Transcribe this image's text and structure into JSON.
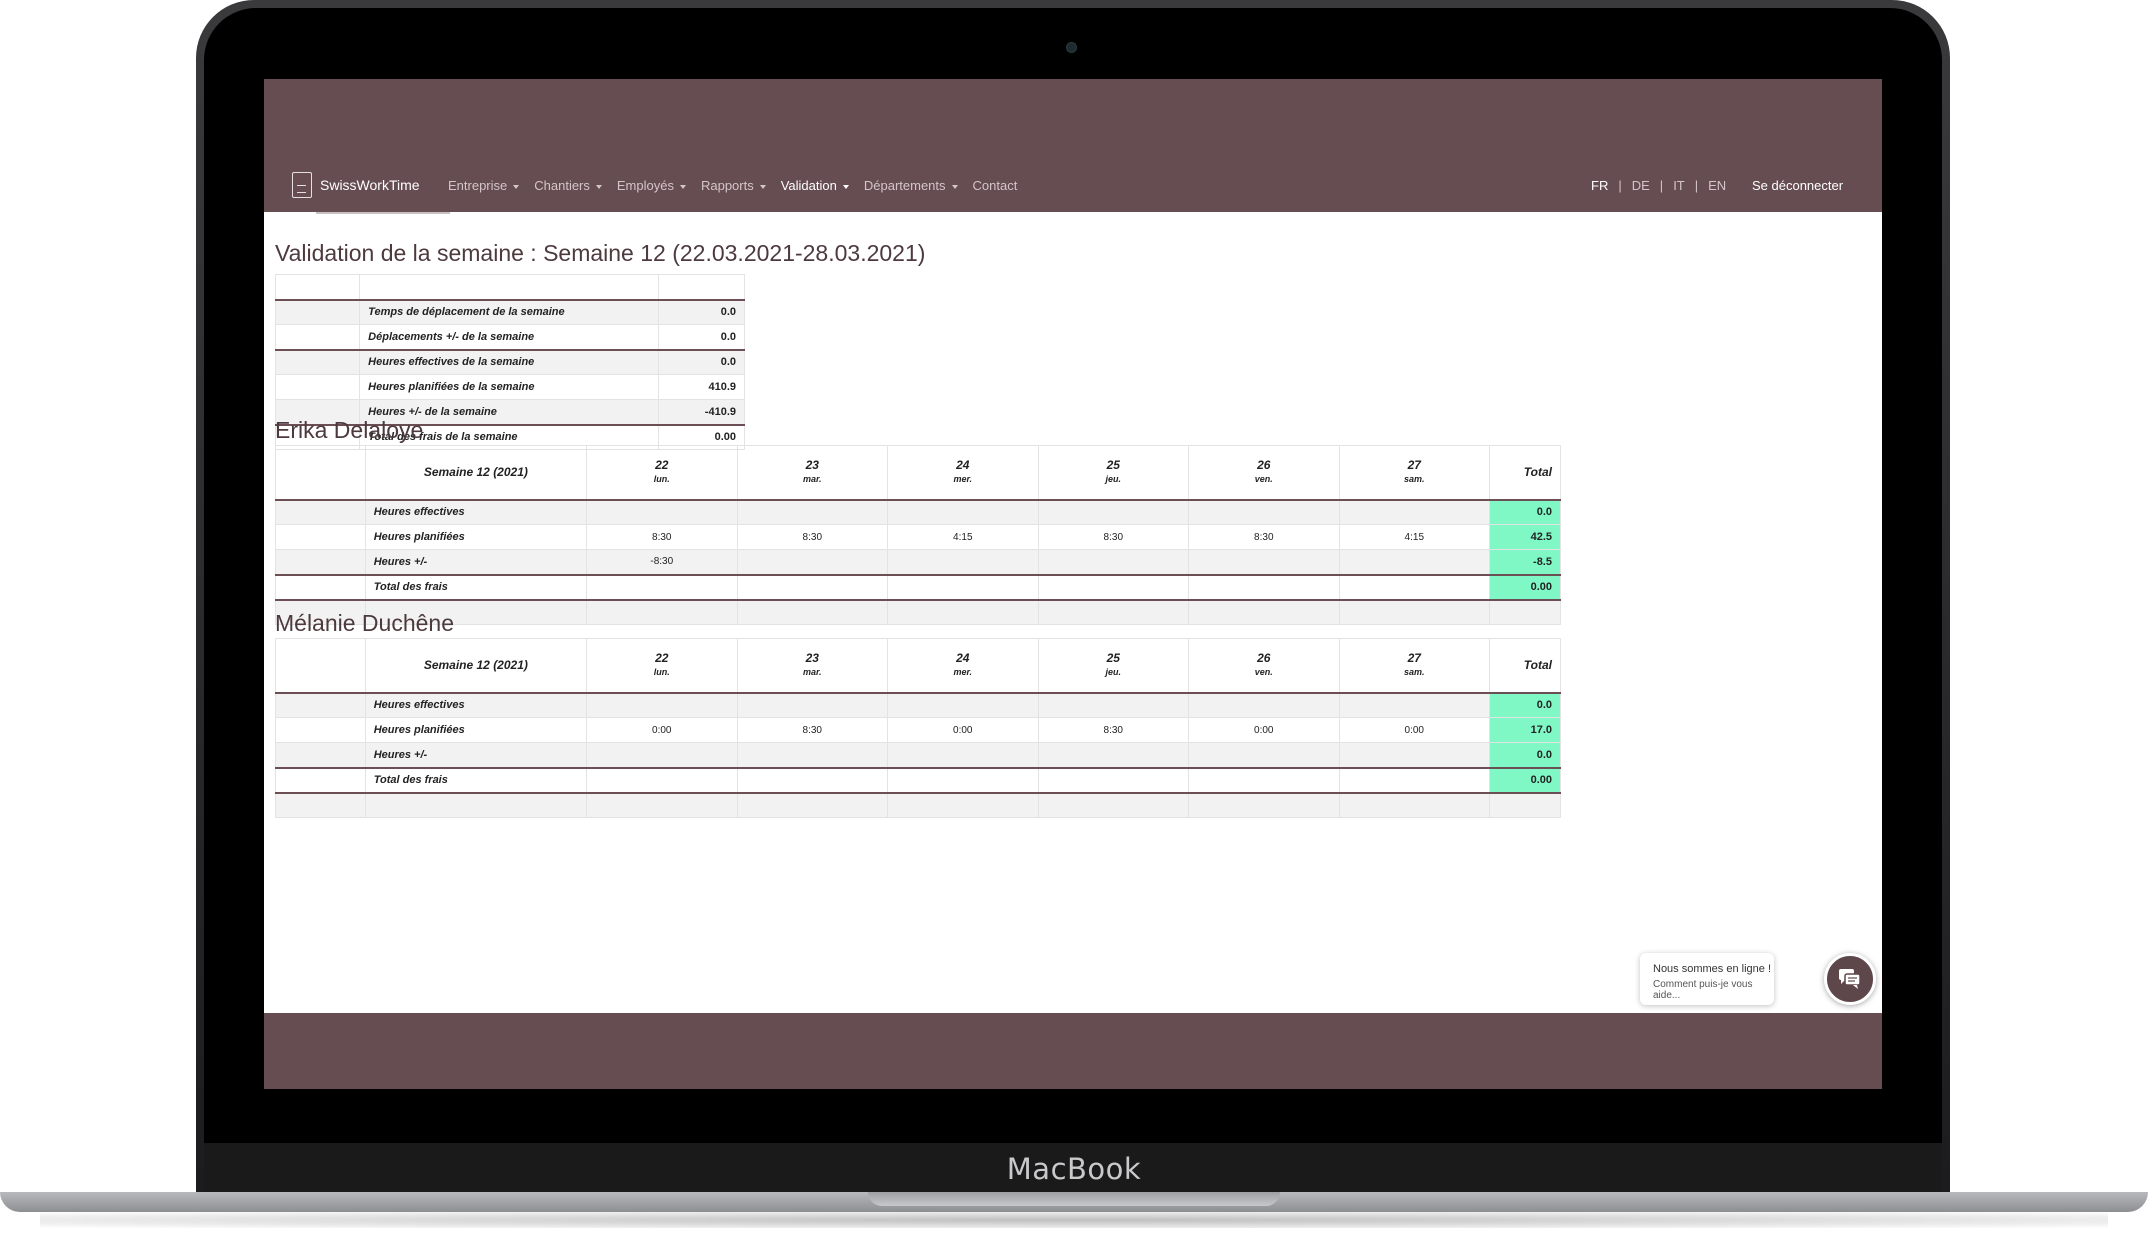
{
  "device_label": "MacBook",
  "app": {
    "logo_text": "SwissWorkTime",
    "nav": [
      {
        "label": "Entreprise",
        "dropdown": true,
        "active": false
      },
      {
        "label": "Chantiers",
        "dropdown": true,
        "active": false
      },
      {
        "label": "Employés",
        "dropdown": true,
        "active": false
      },
      {
        "label": "Rapports",
        "dropdown": true,
        "active": false
      },
      {
        "label": "Validation",
        "dropdown": true,
        "active": true
      },
      {
        "label": "Départements",
        "dropdown": true,
        "active": false
      },
      {
        "label": "Contact",
        "dropdown": false,
        "active": false
      }
    ],
    "languages": [
      "FR",
      "DE",
      "IT",
      "EN"
    ],
    "active_language": "FR",
    "language_separator": "|",
    "logout_label": "Se déconnecter"
  },
  "page": {
    "title": "Validation de la semaine : Semaine 12 (22.03.2021-28.03.2021)",
    "summary": [
      {
        "label": "Temps de déplacement de la semaine",
        "value": "0.0"
      },
      {
        "label": "Déplacements +/- de la semaine",
        "value": "0.0"
      },
      {
        "label": "Heures effectives de la semaine",
        "value": "0.0"
      },
      {
        "label": "Heures planifiées de la semaine",
        "value": "410.9"
      },
      {
        "label": "Heures +/- de la semaine",
        "value": "-410.9"
      },
      {
        "label": "Total des frais de la semaine",
        "value": "0.00"
      }
    ],
    "week_label": "Semaine 12 (2021)",
    "days": [
      {
        "num": "22",
        "wd": "lun."
      },
      {
        "num": "23",
        "wd": "mar."
      },
      {
        "num": "24",
        "wd": "mer."
      },
      {
        "num": "25",
        "wd": "jeu."
      },
      {
        "num": "26",
        "wd": "ven."
      },
      {
        "num": "27",
        "wd": "sam."
      }
    ],
    "total_label": "Total",
    "row_labels": {
      "effective": "Heures effectives",
      "planned": "Heures planifiées",
      "diff": "Heures +/-",
      "expenses": "Total des frais"
    },
    "employees": [
      {
        "name": "Erika Delaloye",
        "effective": [
          "",
          "",
          "",
          "",
          "",
          ""
        ],
        "effective_total": "0.0",
        "planned": [
          "8:30",
          "8:30",
          "4:15",
          "8:30",
          "8:30",
          "4:15"
        ],
        "planned_total": "42.5",
        "diff": [
          "-8:30",
          "",
          "",
          "",
          "",
          ""
        ],
        "diff_total": "-8.5",
        "expenses_total": "0.00"
      },
      {
        "name": "Mélanie Duchêne",
        "effective": [
          "",
          "",
          "",
          "",
          "",
          ""
        ],
        "effective_total": "0.0",
        "planned": [
          "0:00",
          "8:30",
          "0:00",
          "8:30",
          "0:00",
          "0:00"
        ],
        "planned_total": "17.0",
        "diff": [
          "",
          "",
          "",
          "",
          "",
          ""
        ],
        "diff_total": "0.0",
        "expenses_total": "0.00"
      }
    ]
  },
  "chat": {
    "line1": "Nous sommes en ligne !",
    "line2": "Comment puis-je vous aide..."
  },
  "colors": {
    "header_bg": "#664d52",
    "total_highlight": "#7ff8c6"
  }
}
